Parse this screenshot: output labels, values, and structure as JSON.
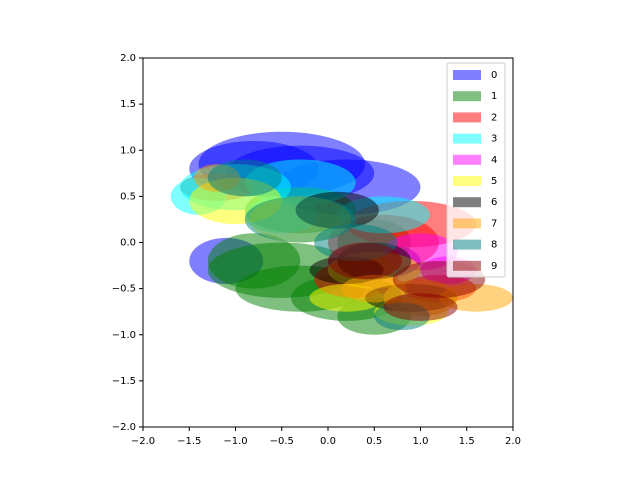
{
  "chart_data": {
    "type": "ellipse",
    "alpha": 0.5,
    "legend": "upper right",
    "xlim": [
      -2,
      2
    ],
    "ylim": [
      -2,
      2
    ],
    "xticks": [
      {
        "value": -2,
        "label": "−2.0"
      },
      {
        "value": -1.5,
        "label": "−1.5"
      },
      {
        "value": -1,
        "label": "−1.0"
      },
      {
        "value": -0.5,
        "label": "−0.5"
      },
      {
        "value": 0,
        "label": "0.0"
      },
      {
        "value": 0.5,
        "label": "0.5"
      },
      {
        "value": 1,
        "label": "1.0"
      },
      {
        "value": 1.5,
        "label": "1.5"
      },
      {
        "value": 2,
        "label": "2.0"
      }
    ],
    "yticks": [
      {
        "value": -2,
        "label": "−2.0"
      },
      {
        "value": -1.5,
        "label": "−1.5"
      },
      {
        "value": -1,
        "label": "−1.0"
      },
      {
        "value": -0.5,
        "label": "−0.5"
      },
      {
        "value": 0,
        "label": "0.0"
      },
      {
        "value": 0.5,
        "label": "0.5"
      },
      {
        "value": 1,
        "label": "1.0"
      },
      {
        "value": 1.5,
        "label": "1.5"
      },
      {
        "value": 2,
        "label": "2.0"
      }
    ],
    "series": [
      {
        "name": "0",
        "color": "blue",
        "x": [
          -0.5,
          -0.3,
          0.2,
          -0.8,
          0.5,
          -1.1
        ],
        "y": [
          0.85,
          0.75,
          0.6,
          0.8,
          -0.2,
          -0.2
        ],
        "width": [
          1.8,
          1.6,
          1.6,
          1.4,
          1.0,
          0.8
        ],
        "height": [
          0.7,
          0.6,
          0.6,
          0.6,
          0.4,
          0.5
        ]
      },
      {
        "name": "1",
        "color": "green",
        "x": [
          -0.5,
          -0.3,
          0.2,
          0.5,
          -0.8,
          -0.3,
          0.5
        ],
        "y": [
          -0.3,
          -0.5,
          -0.6,
          -0.8,
          -0.2,
          0.35,
          0
        ],
        "width": [
          1.6,
          1.4,
          1.2,
          0.8,
          1.0,
          1.2,
          0.8
        ],
        "height": [
          0.6,
          0.5,
          0.5,
          0.4,
          0.6,
          0.5,
          0.5
        ]
      },
      {
        "name": "2",
        "color": "red",
        "x": [
          0.9,
          0.6,
          1.2,
          -1.2,
          0.3
        ],
        "y": [
          0.2,
          0,
          -0.5,
          0.6,
          -0.4
        ],
        "width": [
          1.4,
          1.2,
          0.8,
          0.8,
          0.9
        ],
        "height": [
          0.5,
          0.6,
          0.3,
          0.3,
          0.4
        ]
      },
      {
        "name": "3",
        "color": "cyan",
        "x": [
          -1,
          -0.3,
          -1.4,
          0.6,
          -0.5
        ],
        "y": [
          0.6,
          0.65,
          0.5,
          0.3,
          0.3
        ],
        "width": [
          1.2,
          1.2,
          0.6,
          1.0,
          0.8
        ],
        "height": [
          0.5,
          0.5,
          0.4,
          0.4,
          0.4
        ]
      },
      {
        "name": "4",
        "color": "magenta",
        "x": [
          1.3,
          1
        ],
        "y": [
          -0.3,
          -0.1
        ],
        "width": [
          0.6,
          0.8
        ],
        "height": [
          0.3,
          0.4
        ]
      },
      {
        "name": "5",
        "color": "yellow",
        "x": [
          -1,
          -0.3,
          0.5,
          0.9,
          0.2
        ],
        "y": [
          0.45,
          0.25,
          -0.3,
          -0.75,
          -0.6
        ],
        "width": [
          1.0,
          1.1,
          1.0,
          0.8,
          0.8
        ],
        "height": [
          0.5,
          0.5,
          0.4,
          0.3,
          0.3
        ]
      },
      {
        "name": "6",
        "color": "black",
        "x": [
          0.1,
          0.5,
          0.9,
          0.2
        ],
        "y": [
          0.35,
          -0.2,
          -0.6,
          -0.3
        ],
        "width": [
          0.9,
          0.8,
          1.0,
          0.8
        ],
        "height": [
          0.4,
          0.4,
          0.3,
          0.3
        ]
      },
      {
        "name": "7",
        "color": "orange",
        "x": [
          1.6,
          1,
          0.5,
          -1.2
        ],
        "y": [
          -0.6,
          -0.6,
          -0.5,
          0.7
        ],
        "width": [
          0.8,
          0.8,
          0.7,
          0.5
        ],
        "height": [
          0.3,
          0.4,
          0.3,
          0.3
        ]
      },
      {
        "name": "8",
        "color": "teal",
        "x": [
          -0.3,
          0.3,
          -0.9,
          0.8
        ],
        "y": [
          0.25,
          0,
          0.7,
          -0.8
        ],
        "width": [
          1.2,
          0.9,
          0.8,
          0.6
        ],
        "height": [
          0.5,
          0.4,
          0.4,
          0.3
        ]
      },
      {
        "name": "9",
        "color": "darkred",
        "x": [
          1.2,
          0.4,
          1
        ],
        "y": [
          -0.4,
          -0.2,
          -0.7
        ],
        "width": [
          1.0,
          0.8,
          0.8
        ],
        "height": [
          0.4,
          0.4,
          0.3
        ]
      }
    ]
  }
}
